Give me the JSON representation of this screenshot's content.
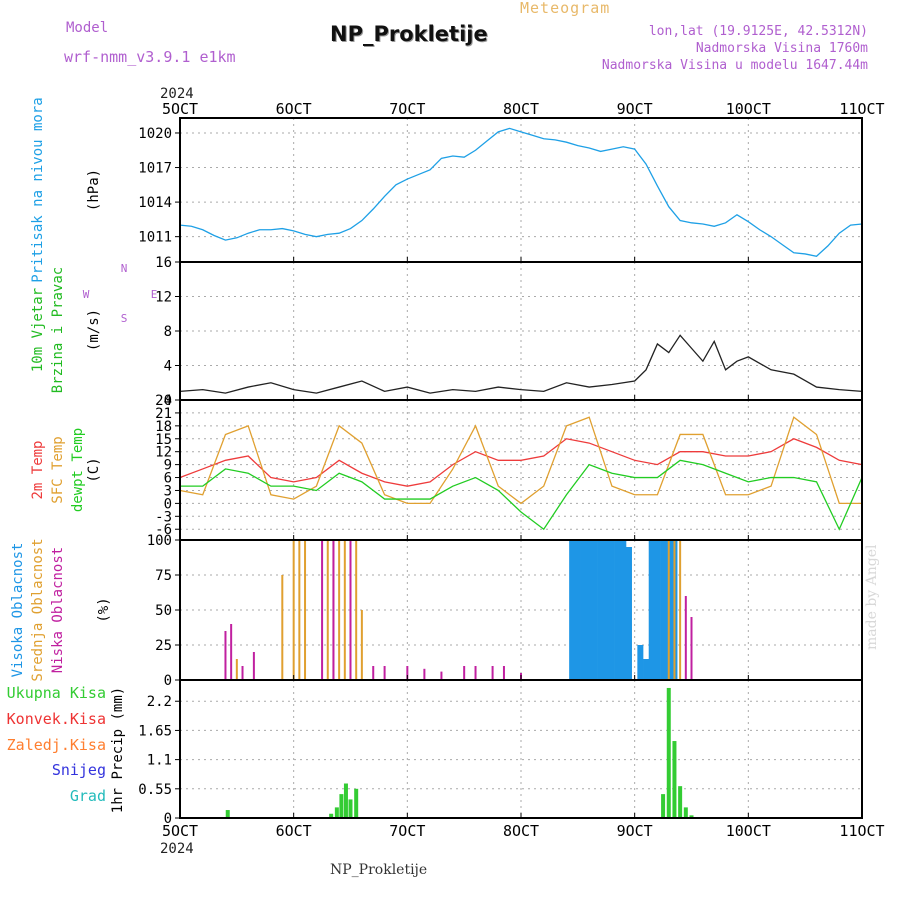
{
  "header": {
    "model_label": "Model",
    "model_version": "wrf-nmm_v3.9.1 e1km",
    "product": "Meteogram",
    "station": "NP_Prokletije",
    "coords": "lon,lat (19.9125E, 42.5312N)",
    "altitude": "Nadmorska Visina 1760m",
    "model_altitude": "Nadmorska Visina u modelu 1647.44m"
  },
  "footer": {
    "station": "NP_Prokletije",
    "made_by": "made by Angel"
  },
  "colors": {
    "pressure": "#1ea0e6",
    "wind_speed": "#222222",
    "wind_label": "#22bb22",
    "wind_compass": "#b05fcf",
    "t2m": "#ee3b3b",
    "sfc_temp": "#e0a030",
    "dewpoint": "#22cc22",
    "high_cloud": "#1e96e6",
    "mid_cloud": "#e0a030",
    "low_cloud": "#c020a0",
    "precip_total": "#33cc33",
    "precip_conv": "#ee3333",
    "precip_frz": "#ff7f30",
    "precip_snow": "#3333dd",
    "precip_grad": "#22bbbb"
  },
  "chart_data": [
    {
      "type": "line",
      "ylabel": "Pritisak na nivou mora",
      "unit": "(hPa)",
      "x_axis": {
        "year": "2024",
        "ticks": [
          "5OCT",
          "6OCT",
          "7OCT",
          "8OCT",
          "9OCT",
          "10OCT",
          "11OCT"
        ],
        "range": [
          5,
          11
        ]
      },
      "ylim": [
        1008.8,
        1021.3
      ],
      "yticks": [
        1011,
        1014,
        1017,
        1020
      ],
      "series": [
        {
          "x": [
            5.0,
            5.1,
            5.2,
            5.3,
            5.4,
            5.5,
            5.6,
            5.7,
            5.8,
            5.9,
            6.0,
            6.1,
            6.2,
            6.3,
            6.4,
            6.5,
            6.6,
            6.7,
            6.8,
            6.9,
            7.0,
            7.1,
            7.2,
            7.3,
            7.4,
            7.5,
            7.6,
            7.7,
            7.8,
            7.9,
            8.0,
            8.1,
            8.2,
            8.3,
            8.4,
            8.5,
            8.6,
            8.7,
            8.8,
            8.9,
            9.0,
            9.1,
            9.2,
            9.3,
            9.4,
            9.5,
            9.6,
            9.7,
            9.8,
            9.9,
            10.0,
            10.1,
            10.2,
            10.3,
            10.4,
            10.5,
            10.6,
            10.7,
            10.8,
            10.9,
            11.0
          ],
          "values": [
            1012.0,
            1011.9,
            1011.6,
            1011.1,
            1010.7,
            1010.9,
            1011.3,
            1011.6,
            1011.6,
            1011.7,
            1011.5,
            1011.2,
            1011.0,
            1011.2,
            1011.3,
            1011.7,
            1012.4,
            1013.4,
            1014.5,
            1015.5,
            1016.0,
            1016.4,
            1016.8,
            1017.8,
            1018.0,
            1017.9,
            1018.5,
            1019.3,
            1020.1,
            1020.4,
            1020.1,
            1019.8,
            1019.5,
            1019.4,
            1019.2,
            1018.9,
            1018.7,
            1018.4,
            1018.6,
            1018.8,
            1018.6,
            1017.3,
            1015.4,
            1013.6,
            1012.4,
            1012.2,
            1012.1,
            1011.9,
            1012.2,
            1012.9,
            1012.3,
            1011.6,
            1011.0,
            1010.3,
            1009.6,
            1009.5,
            1009.3,
            1010.2,
            1011.3,
            1012.0,
            1012.1
          ]
        }
      ]
    },
    {
      "type": "line",
      "ylabel": "10m Vjetar Brzina i Pravac",
      "unit": "(m/s)",
      "compass": {
        "n": "N",
        "s": "S",
        "e": "E",
        "w": "W"
      },
      "ylim": [
        0,
        16
      ],
      "yticks": [
        0,
        4,
        8,
        12,
        16
      ],
      "series": [
        {
          "x": [
            5.0,
            5.2,
            5.4,
            5.6,
            5.8,
            6.0,
            6.2,
            6.4,
            6.6,
            6.8,
            7.0,
            7.2,
            7.4,
            7.6,
            7.8,
            8.0,
            8.2,
            8.4,
            8.6,
            8.8,
            9.0,
            9.1,
            9.2,
            9.3,
            9.4,
            9.5,
            9.6,
            9.7,
            9.8,
            9.9,
            10.0,
            10.2,
            10.4,
            10.6,
            10.8,
            11.0
          ],
          "values": [
            1.0,
            1.2,
            0.8,
            1.5,
            2.0,
            1.2,
            0.8,
            1.5,
            2.2,
            1.0,
            1.5,
            0.8,
            1.2,
            1.0,
            1.5,
            1.2,
            1.0,
            2.0,
            1.5,
            1.8,
            2.2,
            3.5,
            6.5,
            5.5,
            7.5,
            6.0,
            4.5,
            6.8,
            3.5,
            4.5,
            5.0,
            3.5,
            3.0,
            1.5,
            1.2,
            1.0
          ]
        }
      ]
    },
    {
      "type": "line",
      "ylabels": [
        "2m Temp",
        "SFC Temp",
        "dewpt Temp"
      ],
      "unit": "(C)",
      "ylim": [
        -8.5,
        24
      ],
      "yticks": [
        -6,
        -3,
        0,
        3,
        6,
        9,
        12,
        15,
        18,
        21,
        24
      ],
      "series": [
        {
          "key": "t2m",
          "x": [
            5.0,
            5.2,
            5.4,
            5.6,
            5.8,
            6.0,
            6.2,
            6.4,
            6.6,
            6.8,
            7.0,
            7.2,
            7.4,
            7.6,
            7.8,
            8.0,
            8.2,
            8.4,
            8.6,
            8.8,
            9.0,
            9.2,
            9.4,
            9.6,
            9.8,
            10.0,
            10.2,
            10.4,
            10.6,
            10.8,
            11.0
          ],
          "values": [
            6,
            8,
            10,
            11,
            6,
            5,
            6,
            10,
            7,
            5,
            4,
            5,
            9,
            12,
            10,
            10,
            11,
            15,
            14,
            12,
            10,
            9,
            12,
            12,
            11,
            11,
            12,
            15,
            13,
            10,
            9
          ]
        },
        {
          "key": "sfc",
          "x": [
            5.0,
            5.2,
            5.4,
            5.6,
            5.8,
            6.0,
            6.2,
            6.4,
            6.6,
            6.8,
            7.0,
            7.2,
            7.4,
            7.6,
            7.8,
            8.0,
            8.2,
            8.4,
            8.6,
            8.8,
            9.0,
            9.2,
            9.4,
            9.6,
            9.8,
            10.0,
            10.2,
            10.4,
            10.6,
            10.8,
            11.0
          ],
          "values": [
            3,
            2,
            16,
            18,
            2,
            1,
            4,
            18,
            14,
            2,
            0,
            0,
            8,
            18,
            4,
            0,
            4,
            18,
            20,
            4,
            2,
            2,
            16,
            16,
            2,
            2,
            4,
            20,
            16,
            0,
            0
          ]
        },
        {
          "key": "dew",
          "x": [
            5.0,
            5.2,
            5.4,
            5.6,
            5.8,
            6.0,
            6.2,
            6.4,
            6.6,
            6.8,
            7.0,
            7.2,
            7.4,
            7.6,
            7.8,
            8.0,
            8.2,
            8.4,
            8.6,
            8.8,
            9.0,
            9.2,
            9.4,
            9.6,
            9.8,
            10.0,
            10.2,
            10.4,
            10.6,
            10.8,
            11.0
          ],
          "values": [
            4,
            4,
            8,
            7,
            4,
            4,
            3,
            7,
            5,
            1,
            1,
            1,
            4,
            6,
            3,
            -2,
            -6,
            2,
            9,
            7,
            6,
            6,
            10,
            9,
            7,
            5,
            6,
            6,
            5,
            -6,
            6
          ]
        }
      ]
    },
    {
      "type": "bar",
      "ylabels": [
        "Visoka Oblacnost",
        "Srednja Oblacnost",
        "Niska Oblacnost"
      ],
      "unit": "(%)",
      "ylim": [
        0,
        100
      ],
      "yticks": [
        0,
        25,
        50,
        75,
        100
      ],
      "series": [
        {
          "key": "high",
          "x": [
            8.45,
            8.5,
            8.55,
            8.6,
            8.65,
            8.7,
            8.75,
            8.8,
            8.85,
            8.9,
            8.95,
            9.0,
            9.05,
            9.1,
            9.15,
            9.2,
            9.25,
            9.3,
            9.35
          ],
          "values": [
            100,
            100,
            100,
            100,
            100,
            100,
            100,
            100,
            100,
            100,
            95,
            0,
            25,
            15,
            100,
            100,
            100,
            100,
            100
          ]
        },
        {
          "key": "mid",
          "x": [
            5.5,
            5.9,
            6.0,
            6.05,
            6.1,
            6.3,
            6.35,
            6.4,
            6.45,
            6.5,
            6.55,
            6.6,
            9.3,
            9.35,
            9.4
          ],
          "values": [
            15,
            75,
            100,
            100,
            100,
            100,
            100,
            100,
            100,
            100,
            100,
            50,
            100,
            100,
            100
          ]
        },
        {
          "key": "low",
          "x": [
            5.4,
            5.45,
            5.55,
            5.65,
            6.25,
            6.35,
            6.5,
            6.7,
            6.8,
            7.0,
            7.15,
            7.3,
            7.5,
            7.6,
            7.75,
            7.85,
            8.0,
            9.45,
            9.5
          ],
          "values": [
            35,
            40,
            10,
            20,
            100,
            100,
            100,
            10,
            10,
            10,
            8,
            6,
            10,
            10,
            10,
            10,
            5,
            60,
            45
          ]
        }
      ]
    },
    {
      "type": "bar",
      "ylabels": [
        "Ukupna Kisa",
        "Konvek.Kisa",
        "Zaledj.Kisa",
        "Snijeg",
        "Grad"
      ],
      "unit": "1hr Precip (mm)",
      "x_axis": {
        "year": "2024",
        "ticks": [
          "5OCT",
          "6OCT",
          "7OCT",
          "8OCT",
          "9OCT",
          "10OCT",
          "11OCT"
        ],
        "range": [
          5,
          11
        ]
      },
      "ylim": [
        0,
        2.6
      ],
      "yticks": [
        0,
        0.55,
        1.1,
        1.65,
        2.2
      ],
      "series": [
        {
          "key": "total",
          "x": [
            5.42,
            6.33,
            6.38,
            6.42,
            6.46,
            6.5,
            6.55,
            9.25,
            9.3,
            9.35,
            9.4,
            9.45,
            9.5
          ],
          "values": [
            0.15,
            0.08,
            0.2,
            0.45,
            0.65,
            0.35,
            0.55,
            0.45,
            2.45,
            1.45,
            0.6,
            0.2,
            0.05
          ]
        }
      ]
    }
  ]
}
